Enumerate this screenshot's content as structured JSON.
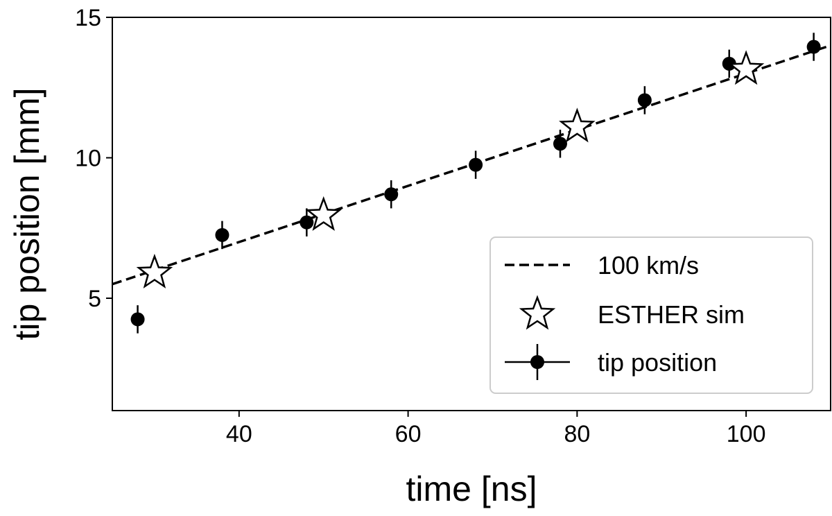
{
  "chart_data": {
    "type": "scatter",
    "xlabel": "time [ns]",
    "ylabel": "tip position [mm]",
    "xlim": [
      25,
      110
    ],
    "ylim": [
      1,
      15
    ],
    "xticks": [
      40,
      60,
      80,
      100
    ],
    "yticks": [
      5,
      10,
      15
    ],
    "grid": false,
    "legend_position": "lower-right",
    "series": [
      {
        "name": "100 km/s",
        "kind": "line",
        "style": "dashed",
        "color": "#000000",
        "x": [
          25,
          110
        ],
        "y": [
          5.5,
          14.0
        ]
      },
      {
        "name": "ESTHER sim",
        "kind": "marker",
        "marker": "star-open",
        "color": "#000000",
        "x": [
          30,
          50,
          80,
          100
        ],
        "y": [
          5.9,
          7.95,
          11.1,
          13.15
        ]
      },
      {
        "name": "tip position",
        "kind": "errorbar",
        "marker": "circle-filled",
        "color": "#000000",
        "x": [
          28,
          38,
          48,
          58,
          68,
          78,
          88,
          98,
          108
        ],
        "y": [
          4.25,
          7.25,
          7.7,
          8.7,
          9.75,
          10.5,
          12.05,
          13.35,
          13.95
        ],
        "yerr": [
          0.5,
          0.5,
          0.5,
          0.5,
          0.5,
          0.5,
          0.5,
          0.5,
          0.5
        ]
      }
    ]
  }
}
